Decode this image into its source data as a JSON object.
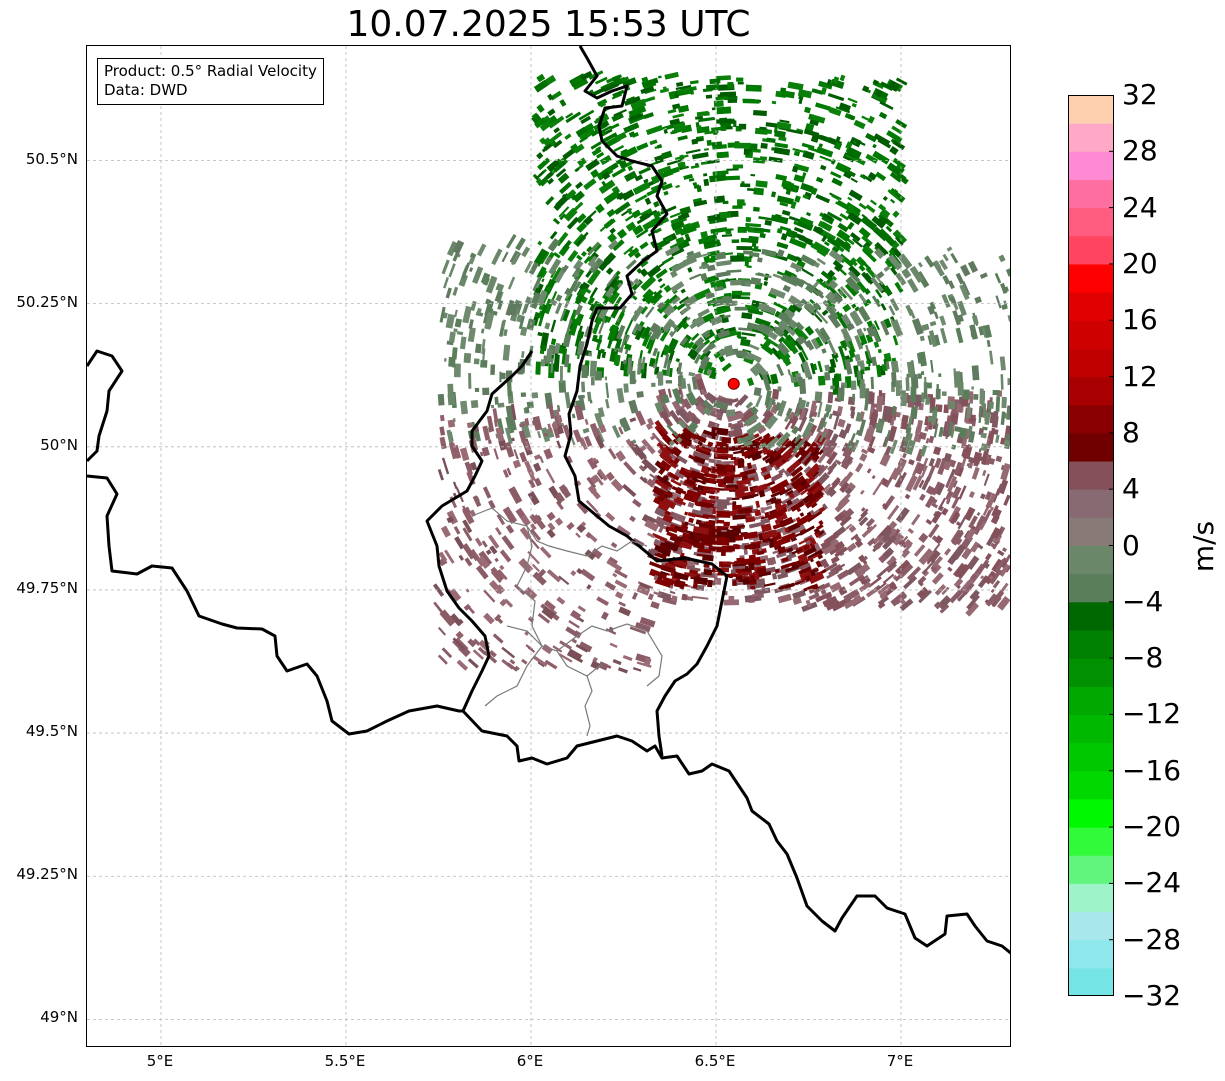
{
  "title": "10.07.2025 15:53 UTC",
  "info_box": {
    "product": "Product: 0.5° Radial Velocity",
    "source": "Data: DWD"
  },
  "map": {
    "lon_range": [
      4.8,
      7.3
    ],
    "lat_range": [
      48.95,
      50.7
    ],
    "lat_ticks": [
      {
        "value": 49.0,
        "label": "49°N"
      },
      {
        "value": 49.25,
        "label": "49.25°N"
      },
      {
        "value": 49.5,
        "label": "49.5°N"
      },
      {
        "value": 49.75,
        "label": "49.75°N"
      },
      {
        "value": 50.0,
        "label": "50°N"
      },
      {
        "value": 50.25,
        "label": "50.25°N"
      },
      {
        "value": 50.5,
        "label": "50.5°N"
      }
    ],
    "lon_ticks": [
      {
        "value": 5.0,
        "label": "5°E"
      },
      {
        "value": 5.5,
        "label": "5.5°E"
      },
      {
        "value": 6.0,
        "label": "6°E"
      },
      {
        "value": 6.5,
        "label": "6.5°E"
      },
      {
        "value": 7.0,
        "label": "7°E"
      }
    ],
    "gridlines": true,
    "radar_site": {
      "lon": 6.548,
      "lat": 50.11,
      "color": "#ff0000"
    },
    "echo_regions": [
      {
        "type": "receding",
        "lon_range": [
          6.35,
          7.3
        ],
        "lat_range": [
          49.72,
          50.1
        ],
        "velocity": 3
      },
      {
        "type": "receding-core",
        "lon_range": [
          6.35,
          6.8
        ],
        "lat_range": [
          49.75,
          50.02
        ],
        "velocity": 8
      },
      {
        "type": "approaching",
        "lon_range": [
          6.0,
          7.0
        ],
        "lat_range": [
          50.12,
          50.65
        ],
        "velocity": -7
      },
      {
        "type": "weak-approaching",
        "lon_range": [
          5.75,
          7.3
        ],
        "lat_range": [
          50.0,
          50.35
        ],
        "velocity": -2
      },
      {
        "type": "weak-receding",
        "lon_range": [
          5.75,
          6.35
        ],
        "lat_range": [
          49.6,
          50.05
        ],
        "velocity": 2
      }
    ]
  },
  "colorbar": {
    "unit": "m/s",
    "min": -32,
    "max": 32,
    "tick_labels": [
      "32",
      "28",
      "24",
      "20",
      "16",
      "12",
      "8",
      "4",
      "0",
      "−4",
      "−8",
      "−12",
      "−16",
      "−20",
      "−24",
      "−28",
      "−32"
    ],
    "colors": [
      "#75e4e4",
      "#8ee8ec",
      "#a8e8ec",
      "#9ef4c8",
      "#62f57e",
      "#30fa3a",
      "#00f800",
      "#00d800",
      "#00c800",
      "#00b800",
      "#00a800",
      "#009000",
      "#008000",
      "#006800",
      "#5a7e5a",
      "#6a876a",
      "#877a77",
      "#886a73",
      "#85505a",
      "#700000",
      "#8a0000",
      "#a80000",
      "#c00000",
      "#cf0000",
      "#e00000",
      "#ff0000",
      "#ff4460",
      "#ff5c80",
      "#ff6ea0",
      "#ff8ad4",
      "#ffa8c8",
      "#ffd0b0"
    ]
  }
}
